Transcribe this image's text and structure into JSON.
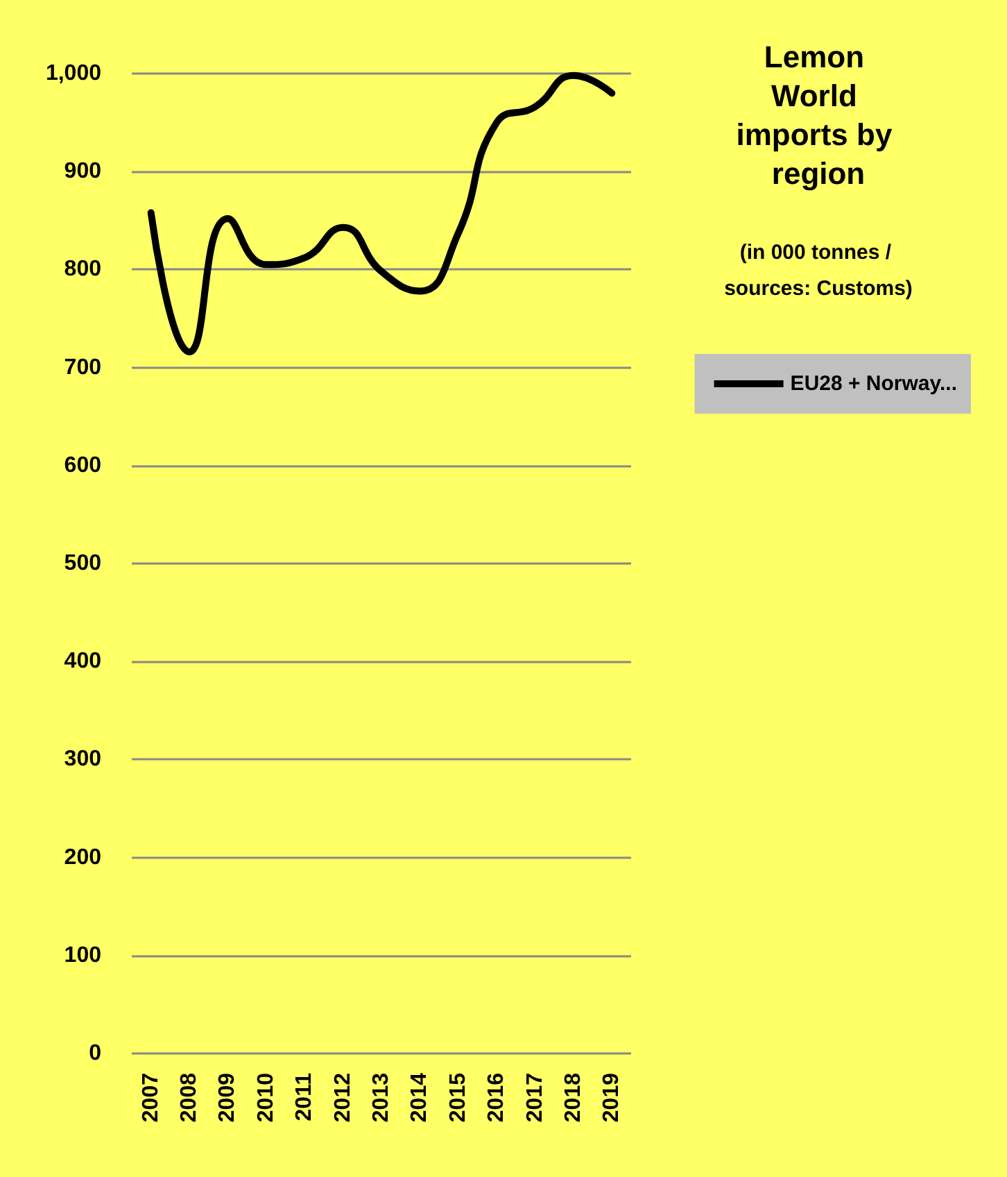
{
  "chart_data": {
    "type": "line",
    "title": "Lemon World imports by region",
    "subtitle": "(in 000 tonnes / sources: Customs)",
    "categories": [
      "2007",
      "2008",
      "2009",
      "2010",
      "2011",
      "2012",
      "2013",
      "2014",
      "2015",
      "2016",
      "2017",
      "2018",
      "2019"
    ],
    "series": [
      {
        "name": "EU28 + Norway...",
        "color": "#000000",
        "values": [
          858,
          716,
          852,
          805,
          812,
          843,
          798,
          778,
          837,
          950,
          966,
          998,
          980
        ]
      }
    ],
    "ylim": [
      0,
      1000
    ],
    "yticks": [
      0,
      100,
      200,
      300,
      400,
      500,
      600,
      700,
      800,
      900,
      {
        "value": 1000,
        "label": "1,000"
      }
    ],
    "grid": "y",
    "legend": "right",
    "marker": "none",
    "line_style": "solid"
  }
}
